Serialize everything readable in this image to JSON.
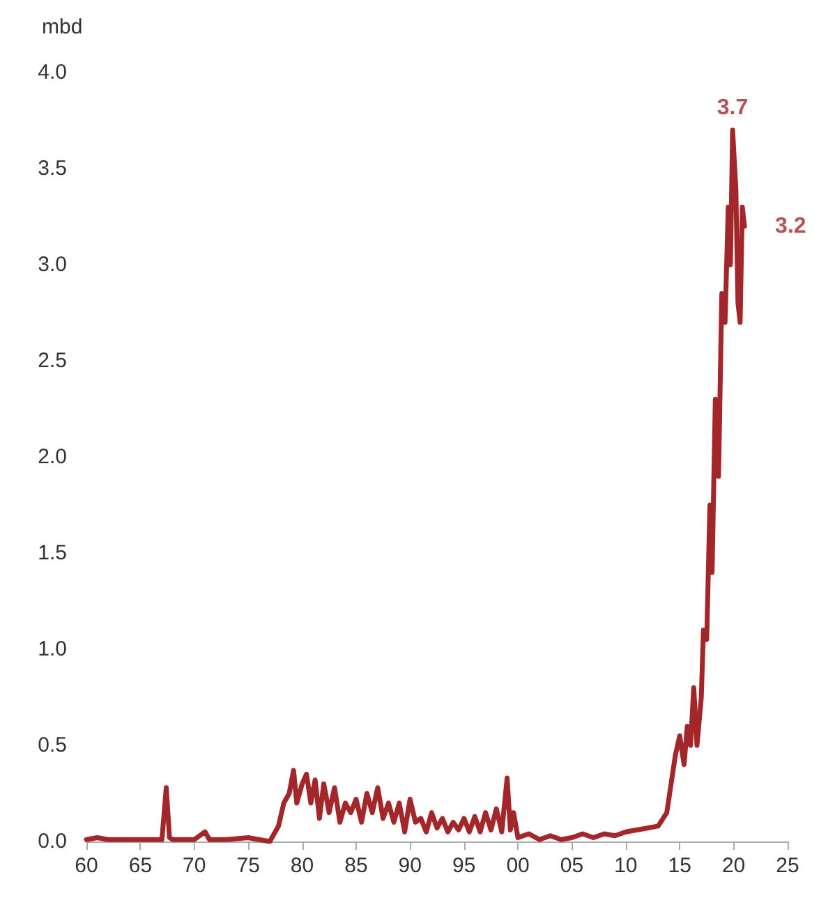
{
  "chart_data": {
    "type": "line",
    "ylabel": "mbd",
    "color": "#a3272a",
    "line_style": "solid",
    "marker": "none",
    "grid": false,
    "x": [
      1960,
      1961,
      1962,
      1963,
      1965,
      1967,
      1967.4,
      1967.7,
      1968,
      1969,
      1970,
      1971,
      1971.4,
      1973,
      1975,
      1976,
      1977,
      1977.8,
      1978.3,
      1978.8,
      1979.2,
      1979.5,
      1980,
      1980.4,
      1980.8,
      1981.2,
      1981.6,
      1982,
      1982.5,
      1983,
      1983.5,
      1984,
      1984.5,
      1985,
      1985.5,
      1986,
      1986.5,
      1987,
      1987.5,
      1988,
      1988.5,
      1989,
      1989.5,
      1990,
      1990.5,
      1991,
      1991.5,
      1992,
      1992.5,
      1993,
      1993.5,
      1994,
      1994.5,
      1995,
      1995.5,
      1996,
      1996.5,
      1997,
      1997.5,
      1998,
      1998.5,
      1999,
      1999.3,
      1999.6,
      2000,
      2001,
      2002,
      2003,
      2004,
      2005,
      2006,
      2007,
      2008,
      2009,
      2010,
      2011,
      2012,
      2013,
      2013.8,
      2014.2,
      2014.6,
      2015,
      2015.4,
      2015.7,
      2016,
      2016.3,
      2016.6,
      2017,
      2017.2,
      2017.5,
      2017.8,
      2018,
      2018.3,
      2018.6,
      2018.9,
      2019.2,
      2019.5,
      2019.7,
      2019.9,
      2020.2,
      2020.4,
      2020.6,
      2020.8,
      2021
    ],
    "values": [
      0.01,
      0.02,
      0.01,
      0.01,
      0.01,
      0.01,
      0.28,
      0.02,
      0.01,
      0.01,
      0.01,
      0.05,
      0.01,
      0.01,
      0.02,
      0.01,
      0.0,
      0.08,
      0.2,
      0.25,
      0.37,
      0.2,
      0.3,
      0.35,
      0.2,
      0.32,
      0.12,
      0.3,
      0.15,
      0.28,
      0.1,
      0.2,
      0.15,
      0.22,
      0.1,
      0.25,
      0.15,
      0.28,
      0.12,
      0.2,
      0.1,
      0.2,
      0.05,
      0.22,
      0.1,
      0.12,
      0.05,
      0.15,
      0.07,
      0.12,
      0.05,
      0.1,
      0.06,
      0.12,
      0.05,
      0.13,
      0.05,
      0.15,
      0.06,
      0.17,
      0.05,
      0.33,
      0.06,
      0.15,
      0.02,
      0.04,
      0.01,
      0.03,
      0.01,
      0.02,
      0.04,
      0.02,
      0.04,
      0.03,
      0.05,
      0.06,
      0.07,
      0.08,
      0.15,
      0.3,
      0.45,
      0.55,
      0.4,
      0.6,
      0.5,
      0.8,
      0.5,
      0.75,
      1.1,
      1.05,
      1.75,
      1.4,
      2.3,
      1.9,
      2.85,
      2.7,
      3.3,
      3.0,
      3.7,
      3.4,
      2.8,
      2.7,
      3.3,
      3.2
    ],
    "xlim": [
      1960,
      2025
    ],
    "xticks": [
      {
        "value": 1960,
        "label": "60"
      },
      {
        "value": 1965,
        "label": "65"
      },
      {
        "value": 1970,
        "label": "70"
      },
      {
        "value": 1975,
        "label": "75"
      },
      {
        "value": 1980,
        "label": "80"
      },
      {
        "value": 1985,
        "label": "85"
      },
      {
        "value": 1990,
        "label": "90"
      },
      {
        "value": 1995,
        "label": "95"
      },
      {
        "value": 2000,
        "label": "00"
      },
      {
        "value": 2005,
        "label": "05"
      },
      {
        "value": 2010,
        "label": "10"
      },
      {
        "value": 2015,
        "label": "15"
      },
      {
        "value": 2020,
        "label": "20"
      },
      {
        "value": 2025,
        "label": "25"
      }
    ],
    "ylim": [
      0,
      4
    ],
    "yticks": [
      {
        "value": 0,
        "label": "0.0"
      },
      {
        "value": 0.5,
        "label": "0.5"
      },
      {
        "value": 1,
        "label": "1.0"
      },
      {
        "value": 1.5,
        "label": "1.5"
      },
      {
        "value": 2,
        "label": "2.0"
      },
      {
        "value": 2.5,
        "label": "2.5"
      },
      {
        "value": 3,
        "label": "3.0"
      },
      {
        "value": 3.5,
        "label": "3.5"
      },
      {
        "value": 4,
        "label": "4.0"
      }
    ],
    "annotations": [
      {
        "text": "3.7",
        "x": 2019.9,
        "y": 3.7
      },
      {
        "text": "3.2",
        "x": 2021,
        "y": 3.2
      }
    ]
  }
}
